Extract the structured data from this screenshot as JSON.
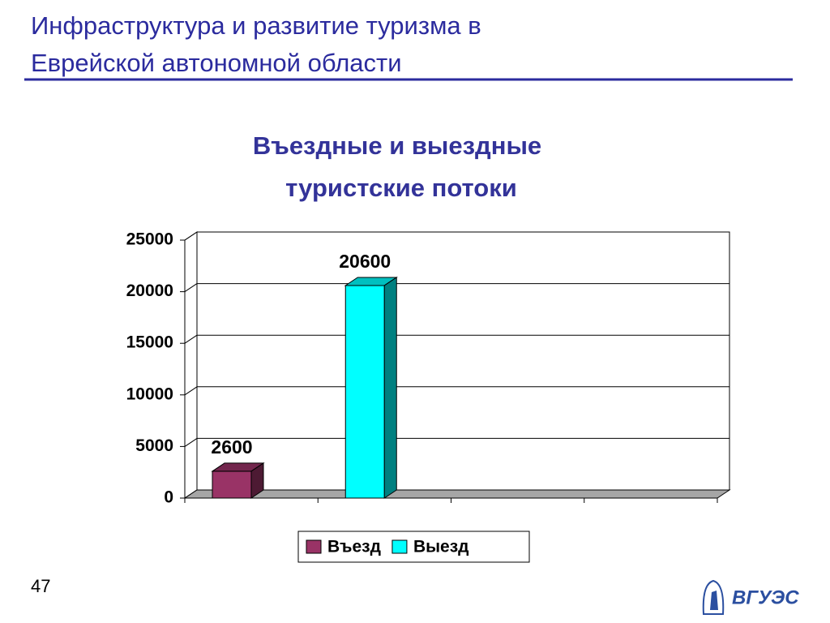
{
  "slide": {
    "title_lines": [
      "Инфраструктура и развитие туризма в",
      "Еврейской автономной области"
    ],
    "page_number": "47",
    "logo_text": "ВГУЭС"
  },
  "chart_data": {
    "type": "bar3d",
    "title_lines": [
      "Въездные и выездные",
      "туристские потоки"
    ],
    "categories": [
      null,
      null,
      null,
      null
    ],
    "series": [
      {
        "name": "Въезд",
        "color": "#993366",
        "values": [
          2600,
          null,
          null,
          null
        ]
      },
      {
        "name": "Выезд",
        "color": "#00ffff",
        "values": [
          null,
          20600,
          null,
          null
        ]
      }
    ],
    "ylim": [
      0,
      25000
    ],
    "yticks": [
      0,
      5000,
      10000,
      15000,
      20000,
      25000
    ],
    "grid": true,
    "legend": "bottom"
  }
}
